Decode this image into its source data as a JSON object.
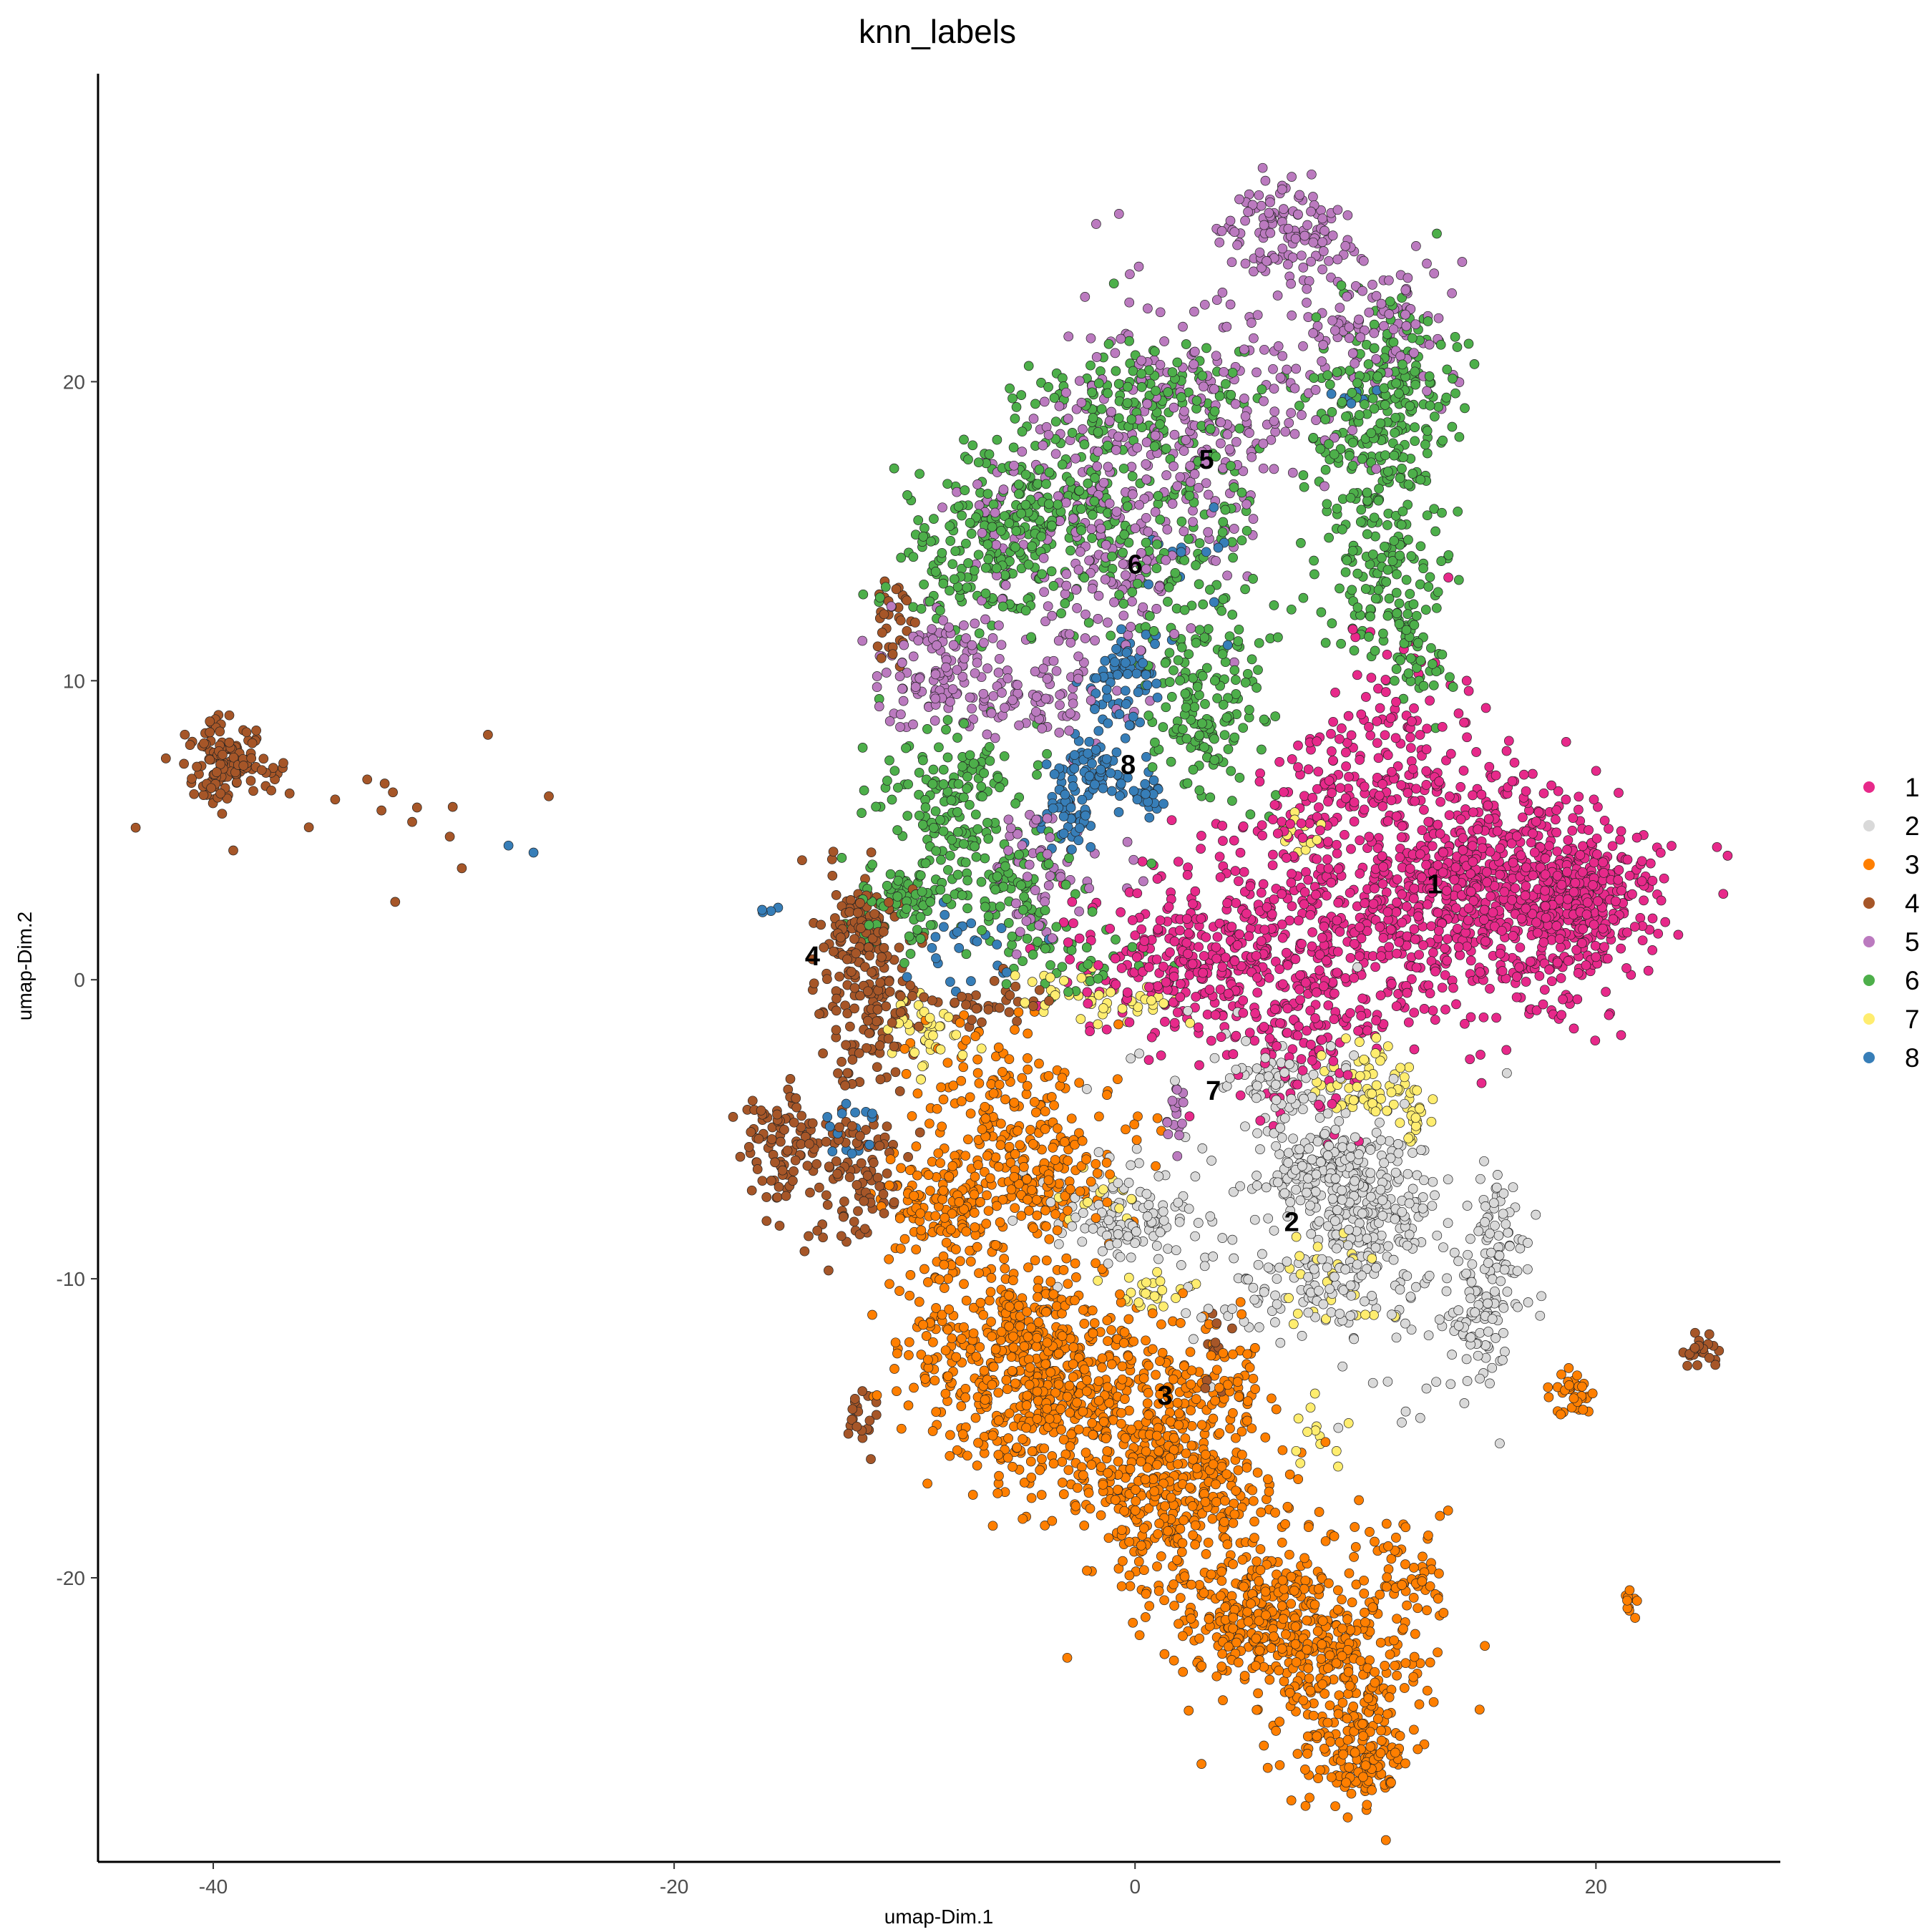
{
  "chart_data": {
    "type": "scatter",
    "title": "knn_labels",
    "xlabel": "umap-Dim.1",
    "ylabel": "umap-Dim.2",
    "xlim": [
      -45,
      28
    ],
    "ylim": [
      -29.5,
      30.3
    ],
    "x_ticks": [
      -40,
      -20,
      0,
      20
    ],
    "y_ticks": [
      -20,
      -10,
      0,
      10,
      20
    ],
    "grid": false,
    "legend_position": "right",
    "legend": [
      {
        "label": "1",
        "color": "#E7298A"
      },
      {
        "label": "2",
        "color": "#D9D9D9"
      },
      {
        "label": "3",
        "color": "#FF7F00"
      },
      {
        "label": "4",
        "color": "#A65628"
      },
      {
        "label": "5",
        "color": "#BB7ABF"
      },
      {
        "label": "6",
        "color": "#4DAF4A"
      },
      {
        "label": "7",
        "color": "#FFED6F"
      },
      {
        "label": "8",
        "color": "#377EB8"
      }
    ],
    "cluster_labels": [
      {
        "text": "1",
        "x": 13,
        "y": 3.2
      },
      {
        "text": "2",
        "x": 6.8,
        "y": -8.1
      },
      {
        "text": "3",
        "x": 1.3,
        "y": -13.9
      },
      {
        "text": "4",
        "x": -14.0,
        "y": 0.8
      },
      {
        "text": "5",
        "x": 3.1,
        "y": 17.4
      },
      {
        "text": "6",
        "x": 0.0,
        "y": 13.9
      },
      {
        "text": "7",
        "x": 3.4,
        "y": -3.7
      },
      {
        "text": "8",
        "x": -0.3,
        "y": 7.2
      }
    ],
    "series": [
      {
        "name": "1",
        "clusters": [
          {
            "cx": 15.5,
            "cy": 3.0,
            "sx": 3.0,
            "sy": 2.0,
            "n": 700
          },
          {
            "cx": 19.5,
            "cy": 2.5,
            "sx": 1.5,
            "sy": 1.0,
            "n": 250
          },
          {
            "cx": 7.5,
            "cy": 1.5,
            "sx": 4.0,
            "sy": 2.0,
            "n": 450
          },
          {
            "cx": 2.5,
            "cy": 0.5,
            "sx": 2.5,
            "sy": 1.2,
            "n": 200
          },
          {
            "cx": 11.5,
            "cy": 7.5,
            "sx": 1.5,
            "sy": 1.8,
            "n": 120
          },
          {
            "cx": 7.5,
            "cy": 6.0,
            "sx": 1.5,
            "sy": 1.2,
            "n": 70
          },
          {
            "cx": 7.0,
            "cy": -2.5,
            "sx": 1.5,
            "sy": 1.2,
            "n": 70
          }
        ]
      },
      {
        "name": "2",
        "clusters": [
          {
            "cx": 10.0,
            "cy": -7.5,
            "sx": 1.5,
            "sy": 1.2,
            "n": 230
          },
          {
            "cx": 8.0,
            "cy": -6.0,
            "sx": 1.5,
            "sy": 0.8,
            "n": 120
          },
          {
            "cx": 15.0,
            "cy": -11.0,
            "sx": 0.8,
            "sy": 1.2,
            "n": 90
          },
          {
            "cx": 16.0,
            "cy": -8.5,
            "sx": 0.6,
            "sy": 1.0,
            "n": 60
          },
          {
            "cx": 7.5,
            "cy": -10.5,
            "sx": 2.0,
            "sy": 0.7,
            "n": 90
          },
          {
            "cx": -0.5,
            "cy": -8.0,
            "sx": 1.5,
            "sy": 0.8,
            "n": 110
          },
          {
            "cx": 6.0,
            "cy": -3.5,
            "sx": 1.0,
            "sy": 0.6,
            "n": 60
          },
          {
            "cx": 5.0,
            "cy": -7.0,
            "sx": 4.0,
            "sy": 3.0,
            "n": 80
          },
          {
            "cx": 13.0,
            "cy": -12.5,
            "sx": 3.0,
            "sy": 2.5,
            "n": 25
          }
        ]
      },
      {
        "name": "3",
        "clusters": [
          {
            "cx": -5.0,
            "cy": -12.5,
            "sx": 2.5,
            "sy": 1.6,
            "n": 450
          },
          {
            "cx": -1.5,
            "cy": -15.0,
            "sx": 2.5,
            "sy": 1.6,
            "n": 350
          },
          {
            "cx": 2.5,
            "cy": -17.5,
            "sx": 2.3,
            "sy": 1.5,
            "n": 300
          },
          {
            "cx": 5.5,
            "cy": -21.5,
            "sx": 2.0,
            "sy": 1.1,
            "n": 300
          },
          {
            "cx": 9.0,
            "cy": -23.5,
            "sx": 1.8,
            "sy": 1.6,
            "n": 250
          },
          {
            "cx": 10.0,
            "cy": -26.3,
            "sx": 0.8,
            "sy": 0.8,
            "n": 90
          },
          {
            "cx": 12.0,
            "cy": -20.0,
            "sx": 1.0,
            "sy": 1.0,
            "n": 60
          },
          {
            "cx": -8.0,
            "cy": -7.5,
            "sx": 1.5,
            "sy": 1.0,
            "n": 150
          },
          {
            "cx": -5.0,
            "cy": -4.5,
            "sx": 2.2,
            "sy": 1.5,
            "n": 180
          },
          {
            "cx": -3.5,
            "cy": -7.0,
            "sx": 1.2,
            "sy": 0.8,
            "n": 80
          },
          {
            "cx": 3.0,
            "cy": -13.5,
            "sx": 1.2,
            "sy": 1.0,
            "n": 80
          },
          {
            "cx": 19.0,
            "cy": -14.0,
            "sx": 0.5,
            "sy": 0.4,
            "n": 35
          },
          {
            "cx": 21.5,
            "cy": -20.8,
            "sx": 0.15,
            "sy": 0.3,
            "n": 10
          }
        ]
      },
      {
        "name": "4",
        "clusters": [
          {
            "cx": -39.5,
            "cy": 7.3,
            "sx": 0.9,
            "sy": 0.6,
            "n": 140
          },
          {
            "cx": -34.0,
            "cy": 5.2,
            "sx": 4.0,
            "sy": 1.2,
            "n": 18
          },
          {
            "cx": -12.0,
            "cy": 1.5,
            "sx": 0.9,
            "sy": 1.0,
            "n": 130
          },
          {
            "cx": -11.5,
            "cy": -1.0,
            "sx": 1.2,
            "sy": 1.0,
            "n": 100
          },
          {
            "cx": -15.5,
            "cy": -5.5,
            "sx": 0.8,
            "sy": 1.2,
            "n": 90
          },
          {
            "cx": -12.0,
            "cy": -6.0,
            "sx": 1.0,
            "sy": 1.5,
            "n": 110
          },
          {
            "cx": -10.5,
            "cy": 12.0,
            "sx": 0.6,
            "sy": 0.7,
            "n": 30
          },
          {
            "cx": -12.0,
            "cy": -14.5,
            "sx": 0.4,
            "sy": 0.8,
            "n": 20
          },
          {
            "cx": 3.5,
            "cy": -12.5,
            "sx": 0.4,
            "sy": 0.6,
            "n": 12
          },
          {
            "cx": 24.5,
            "cy": -12.5,
            "sx": 0.5,
            "sy": 0.3,
            "n": 22
          },
          {
            "cx": -6.0,
            "cy": -0.8,
            "sx": 1.0,
            "sy": 0.4,
            "n": 30
          }
        ]
      },
      {
        "name": "5",
        "clusters": [
          {
            "cx": 6.5,
            "cy": 25.0,
            "sx": 1.5,
            "sy": 0.8,
            "n": 130
          },
          {
            "cx": 10.5,
            "cy": 22.0,
            "sx": 1.5,
            "sy": 1.0,
            "n": 100
          },
          {
            "cx": 3.0,
            "cy": 19.0,
            "sx": 3.5,
            "sy": 2.0,
            "n": 250
          },
          {
            "cx": -2.0,
            "cy": 15.5,
            "sx": 2.5,
            "sy": 1.5,
            "n": 150
          },
          {
            "cx": -8.5,
            "cy": 10.5,
            "sx": 1.8,
            "sy": 1.2,
            "n": 120
          },
          {
            "cx": -4.5,
            "cy": 9.5,
            "sx": 1.5,
            "sy": 0.8,
            "n": 80
          },
          {
            "cx": -4.0,
            "cy": 3.5,
            "sx": 1.5,
            "sy": 1.0,
            "n": 60
          },
          {
            "cx": 1.8,
            "cy": -4.5,
            "sx": 0.3,
            "sy": 0.5,
            "n": 18
          },
          {
            "cx": -1.5,
            "cy": 12.5,
            "sx": 2.0,
            "sy": 1.5,
            "n": 60
          }
        ]
      },
      {
        "name": "6",
        "clusters": [
          {
            "cx": 11.0,
            "cy": 19.0,
            "sx": 1.5,
            "sy": 1.8,
            "n": 250
          },
          {
            "cx": 10.5,
            "cy": 14.0,
            "sx": 1.5,
            "sy": 1.5,
            "n": 130
          },
          {
            "cx": 12.0,
            "cy": 11.0,
            "sx": 0.8,
            "sy": 1.0,
            "n": 50
          },
          {
            "cx": 0.5,
            "cy": 19.5,
            "sx": 2.5,
            "sy": 1.0,
            "n": 150
          },
          {
            "cx": -3.5,
            "cy": 16.0,
            "sx": 2.5,
            "sy": 1.2,
            "n": 200
          },
          {
            "cx": -6.5,
            "cy": 14.0,
            "sx": 2.0,
            "sy": 1.2,
            "n": 150
          },
          {
            "cx": 3.0,
            "cy": 9.0,
            "sx": 1.2,
            "sy": 1.8,
            "n": 150
          },
          {
            "cx": -8.0,
            "cy": 6.0,
            "sx": 1.5,
            "sy": 1.2,
            "n": 140
          },
          {
            "cx": -5.5,
            "cy": 3.0,
            "sx": 1.5,
            "sy": 1.0,
            "n": 100
          },
          {
            "cx": -10.0,
            "cy": 2.5,
            "sx": 1.2,
            "sy": 0.8,
            "n": 80
          },
          {
            "cx": 3.0,
            "cy": 14.0,
            "sx": 2.5,
            "sy": 2.0,
            "n": 100
          },
          {
            "cx": -2.5,
            "cy": 0.8,
            "sx": 1.5,
            "sy": 0.6,
            "n": 40
          }
        ]
      },
      {
        "name": "7",
        "clusters": [
          {
            "cx": 10.0,
            "cy": -3.5,
            "sx": 1.0,
            "sy": 0.8,
            "n": 60
          },
          {
            "cx": 12.0,
            "cy": -4.5,
            "sx": 0.4,
            "sy": 0.6,
            "n": 25
          },
          {
            "cx": -9.0,
            "cy": -1.8,
            "sx": 0.8,
            "sy": 0.6,
            "n": 40
          },
          {
            "cx": -1.5,
            "cy": -0.5,
            "sx": 2.0,
            "sy": 0.5,
            "n": 50
          },
          {
            "cx": 7.0,
            "cy": 4.8,
            "sx": 0.5,
            "sy": 0.4,
            "n": 15
          },
          {
            "cx": 0.5,
            "cy": -10.5,
            "sx": 0.8,
            "sy": 0.4,
            "n": 25
          },
          {
            "cx": 8.5,
            "cy": -10.0,
            "sx": 1.2,
            "sy": 0.8,
            "n": 30
          },
          {
            "cx": 8.0,
            "cy": -15.5,
            "sx": 0.5,
            "sy": 0.5,
            "n": 12
          },
          {
            "cx": -1.0,
            "cy": -7.0,
            "sx": 1.0,
            "sy": 0.5,
            "n": 15
          }
        ]
      },
      {
        "name": "8",
        "clusters": [
          {
            "cx": -0.5,
            "cy": 10.0,
            "sx": 0.7,
            "sy": 0.7,
            "n": 70
          },
          {
            "cx": -1.8,
            "cy": 7.3,
            "sx": 0.6,
            "sy": 0.5,
            "n": 50
          },
          {
            "cx": -3.0,
            "cy": 5.5,
            "sx": 0.6,
            "sy": 0.8,
            "n": 60
          },
          {
            "cx": 0.4,
            "cy": 6.3,
            "sx": 0.5,
            "sy": 0.5,
            "n": 30
          },
          {
            "cx": -7.5,
            "cy": 1.3,
            "sx": 1.2,
            "sy": 0.8,
            "n": 25
          },
          {
            "cx": -15.8,
            "cy": 2.3,
            "sx": 0.3,
            "sy": 0.05,
            "n": 4
          },
          {
            "cx": -27.5,
            "cy": 4.3,
            "sx": 0.8,
            "sy": 0.1,
            "n": 2
          },
          {
            "cx": 9.5,
            "cy": 19.5,
            "sx": 0.5,
            "sy": 0.4,
            "n": 8
          },
          {
            "cx": -12.0,
            "cy": -5.0,
            "sx": 0.8,
            "sy": 1.0,
            "n": 15
          },
          {
            "cx": 2.0,
            "cy": 13.0,
            "sx": 2.0,
            "sy": 1.5,
            "n": 15
          }
        ]
      }
    ]
  }
}
